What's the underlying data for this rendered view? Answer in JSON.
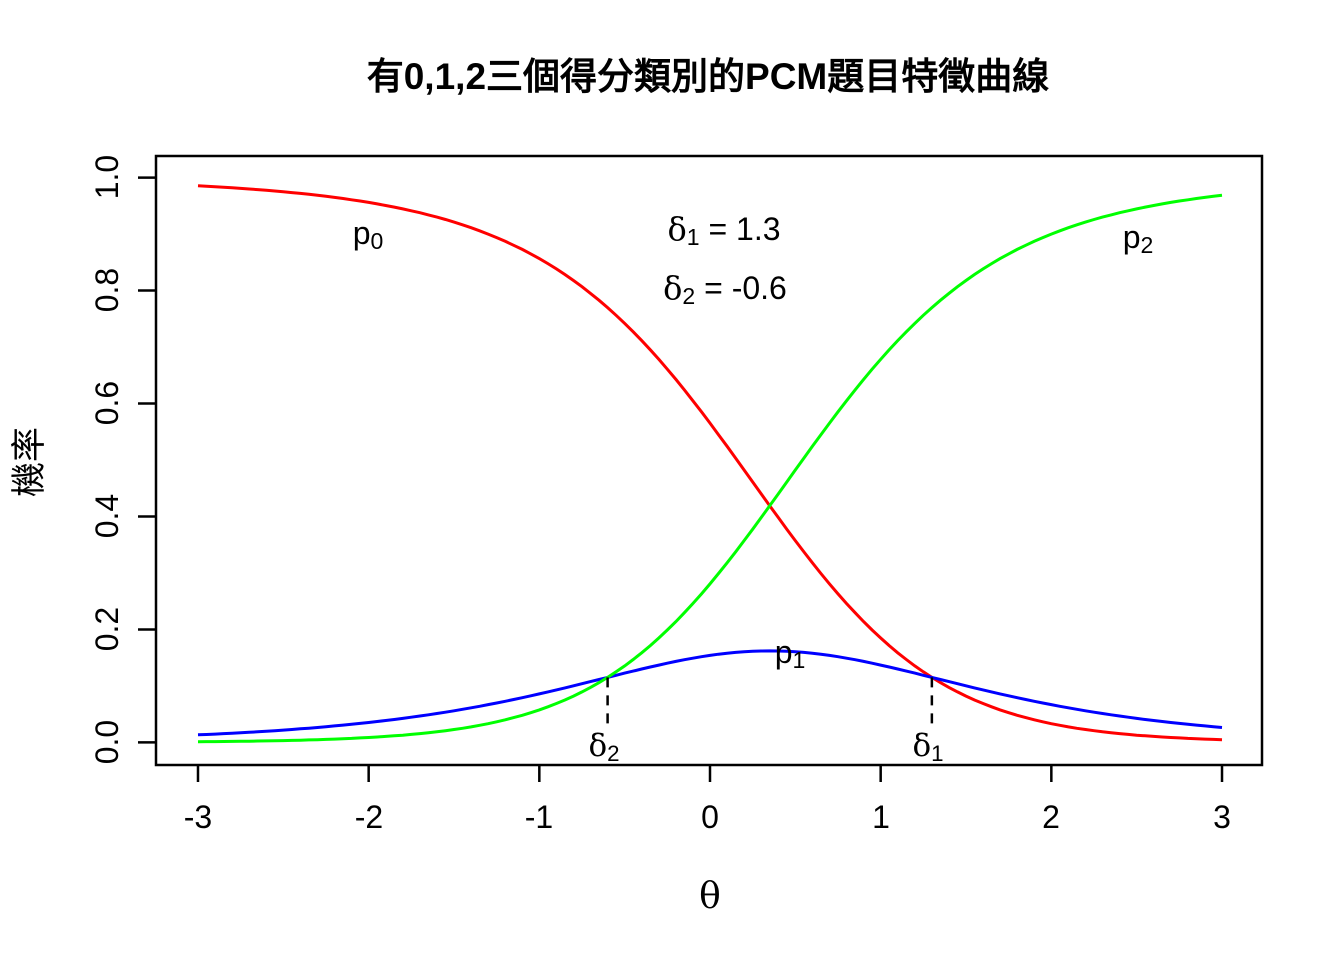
{
  "chart_data": {
    "type": "line",
    "title": "有0,1,2三個得分類別的PCM題目特徵曲線",
    "xlabel": "θ",
    "ylabel": "機率",
    "xlim": [
      -3,
      3
    ],
    "ylim": [
      0,
      1
    ],
    "grid": false,
    "legend": "none (curves labeled inline as p0, p1, p2)",
    "x_ticks": [
      "-3",
      "-2",
      "-1",
      "0",
      "1",
      "2",
      "3"
    ],
    "y_ticks": [
      "0.0",
      "0.2",
      "0.4",
      "0.6",
      "0.8",
      "1.0"
    ],
    "x_tick_values": [
      -3,
      -2,
      -1,
      0,
      1,
      2,
      3
    ],
    "y_tick_values": [
      0,
      0.2,
      0.4,
      0.6,
      0.8,
      1
    ],
    "model": "Partial Credit Model item characteristic curves, score categories 0,1,2",
    "params": {
      "delta1": 1.3,
      "delta2": -0.6
    },
    "x": [
      -3,
      -2.75,
      -2.5,
      -2.25,
      -2,
      -1.75,
      -1.5,
      -1.25,
      -1,
      -0.75,
      -0.5,
      -0.25,
      0,
      0.25,
      0.5,
      0.75,
      1,
      1.25,
      1.5,
      1.75,
      2,
      2.25,
      2.5,
      2.75,
      3
    ],
    "series": [
      {
        "name": "p0",
        "color": "#ff0000",
        "values": [
          0.9854,
          0.9809,
          0.9749,
          0.9669,
          0.956,
          0.9413,
          0.9212,
          0.8938,
          0.8566,
          0.8068,
          0.7418,
          0.6607,
          0.5652,
          0.4611,
          0.3573,
          0.263,
          0.1848,
          0.125,
          0.082,
          0.0526,
          0.0332,
          0.0207,
          0.0128,
          0.0079,
          0.0048
        ]
      },
      {
        "name": "p1",
        "color": "#0000ff",
        "values": [
          0.0134,
          0.0171,
          0.0218,
          0.0278,
          0.0353,
          0.0446,
          0.056,
          0.0698,
          0.0859,
          0.1039,
          0.1226,
          0.1402,
          0.154,
          0.1614,
          0.1605,
          0.1517,
          0.1369,
          0.1189,
          0.1002,
          0.0825,
          0.0668,
          0.0535,
          0.0426,
          0.0336,
          0.0265
        ]
      },
      {
        "name": "p2",
        "color": "#00ff00",
        "values": [
          0.0012,
          0.002,
          0.0033,
          0.0053,
          0.0087,
          0.0141,
          0.0228,
          0.0364,
          0.0576,
          0.0894,
          0.1355,
          0.199,
          0.2807,
          0.3775,
          0.4822,
          0.5853,
          0.6782,
          0.7561,
          0.8179,
          0.8649,
          0.9,
          0.9257,
          0.9446,
          0.9585,
          0.9687
        ]
      }
    ],
    "annotations": [
      "δ1 = 1.3",
      "δ2 = -0.6"
    ],
    "threshold_markers": [
      {
        "label": "δ1",
        "x": 1.3,
        "style": "dashed-vertical"
      },
      {
        "label": "δ2",
        "x": -0.6,
        "style": "dashed-vertical"
      }
    ]
  },
  "labels": {
    "p0": {
      "base": "p",
      "sub": "0"
    },
    "p1": {
      "base": "p",
      "sub": "1"
    },
    "p2": {
      "base": "p",
      "sub": "2"
    },
    "ann_delta1": {
      "symbol": "δ",
      "sub": "1",
      "rest": " = 1.3"
    },
    "ann_delta2": {
      "symbol": "δ",
      "sub": "2",
      "rest": " = -0.6"
    },
    "marker_delta1": {
      "symbol": "δ",
      "sub": "1"
    },
    "marker_delta2": {
      "symbol": "δ",
      "sub": "2"
    }
  }
}
